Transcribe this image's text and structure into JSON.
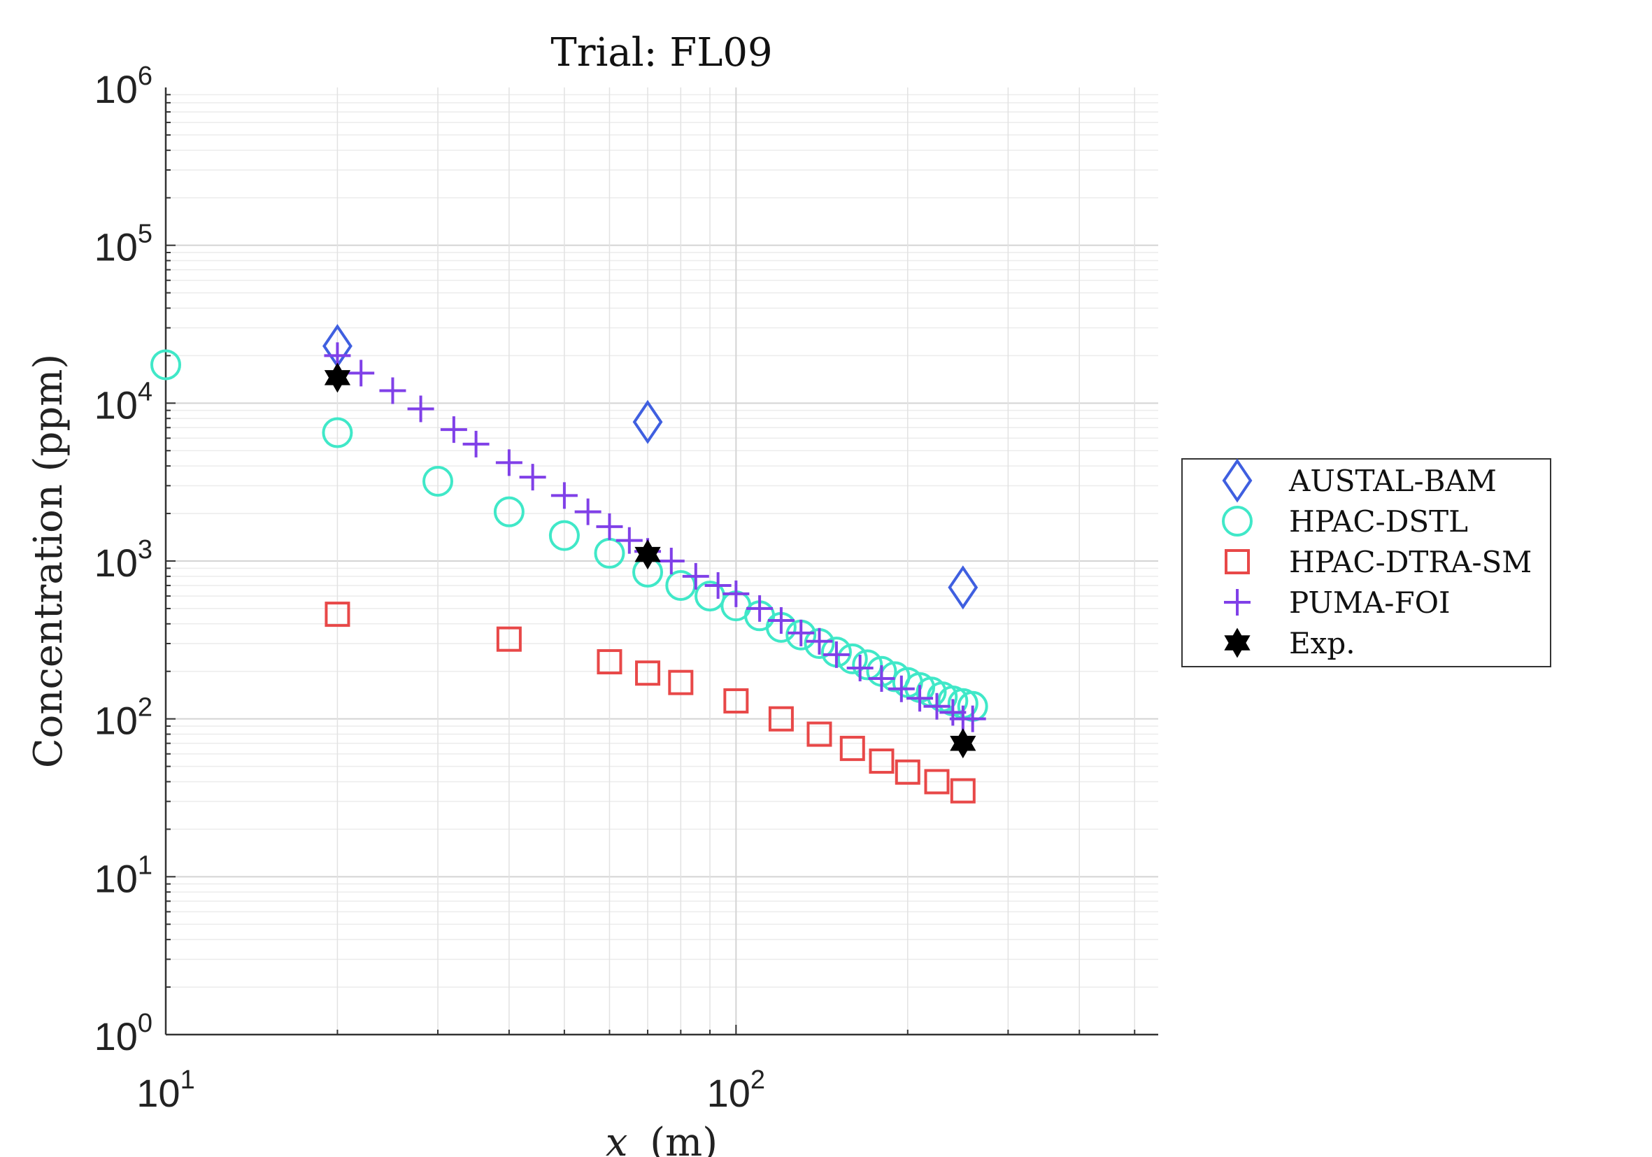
{
  "chart_data": {
    "type": "scatter",
    "title": "Trial:  FL09",
    "xlabel_var": "x",
    "xlabel_unit": "(m)",
    "ylabel": "Concentration (ppm)",
    "x_scale": "log",
    "y_scale": "log",
    "xlim": [
      10,
      550
    ],
    "ylim": [
      1,
      1000000
    ],
    "x_ticks": [
      {
        "value": 10,
        "base": "10",
        "exp": "1"
      },
      {
        "value": 100,
        "base": "10",
        "exp": "2"
      }
    ],
    "y_ticks": [
      {
        "value": 1,
        "base": "10",
        "exp": "0"
      },
      {
        "value": 10,
        "base": "10",
        "exp": "1"
      },
      {
        "value": 100,
        "base": "10",
        "exp": "2"
      },
      {
        "value": 1000,
        "base": "10",
        "exp": "3"
      },
      {
        "value": 10000,
        "base": "10",
        "exp": "4"
      },
      {
        "value": 100000,
        "base": "10",
        "exp": "5"
      },
      {
        "value": 1000000,
        "base": "10",
        "exp": "6"
      }
    ],
    "grid": true,
    "legend_position": "outside-right",
    "series": [
      {
        "name": "AUSTAL-BAM",
        "marker": "diamond",
        "color": "#3F5FE0",
        "x": [
          20,
          70,
          250
        ],
        "y": [
          23000,
          7600,
          680
        ]
      },
      {
        "name": "HPAC-DSTL",
        "marker": "circle",
        "color": "#40E8C8",
        "x": [
          10,
          20,
          30,
          40,
          50,
          60,
          70,
          80,
          90,
          100,
          110,
          120,
          130,
          140,
          150,
          160,
          170,
          180,
          190,
          200,
          210,
          220,
          230,
          240,
          250,
          260
        ],
        "y": [
          17500,
          6500,
          3200,
          2050,
          1450,
          1120,
          850,
          700,
          600,
          520,
          450,
          380,
          340,
          300,
          265,
          240,
          220,
          200,
          185,
          170,
          158,
          148,
          138,
          130,
          125,
          120
        ]
      },
      {
        "name": "HPAC-DTRA-SM",
        "marker": "square",
        "color": "#E84848",
        "x": [
          20,
          40,
          60,
          70,
          80,
          100,
          120,
          140,
          160,
          180,
          200,
          225,
          250
        ],
        "y": [
          460,
          320,
          230,
          195,
          170,
          130,
          100,
          80,
          65,
          54,
          46,
          40,
          35
        ]
      },
      {
        "name": "PUMA-FOI",
        "marker": "plus",
        "color": "#8040E8",
        "x": [
          20,
          22,
          25,
          28,
          32,
          35,
          40,
          44,
          50,
          55,
          60,
          65,
          70,
          77,
          85,
          93,
          100,
          110,
          120,
          130,
          140,
          150,
          165,
          180,
          195,
          210,
          225,
          240,
          250,
          260
        ],
        "y": [
          20000,
          15500,
          12000,
          9200,
          6800,
          5500,
          4200,
          3400,
          2600,
          2050,
          1650,
          1350,
          1150,
          1000,
          800,
          700,
          620,
          500,
          420,
          350,
          310,
          255,
          210,
          180,
          155,
          135,
          120,
          110,
          100,
          100
        ]
      },
      {
        "name": "Exp.",
        "marker": "hexagram",
        "color": "#000000",
        "x": [
          20,
          70,
          250
        ],
        "y": [
          14500,
          1100,
          70
        ]
      }
    ]
  }
}
